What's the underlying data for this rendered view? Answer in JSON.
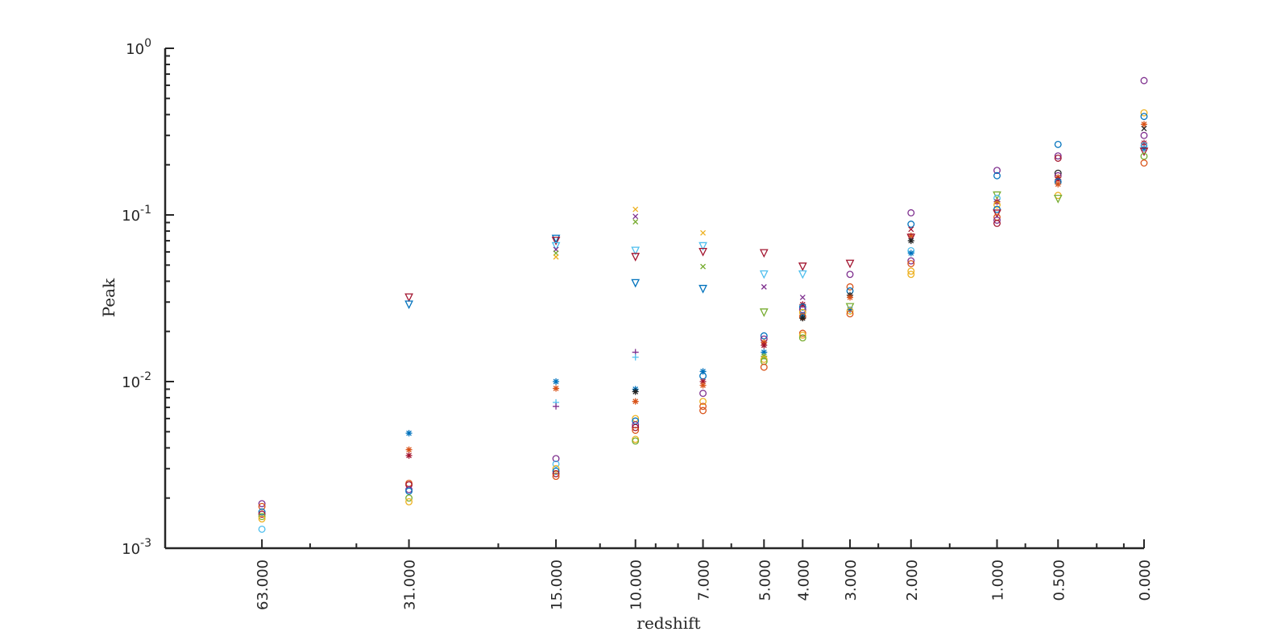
{
  "chart_data": {
    "type": "scatter",
    "title": "",
    "xlabel": "redshift",
    "ylabel": "Peak",
    "y_scale": "log",
    "ylim": [
      0.001,
      1
    ],
    "y_ticks": [
      {
        "value": 0.001,
        "base": "10",
        "exp": "-3"
      },
      {
        "value": 0.01,
        "base": "10",
        "exp": "-2"
      },
      {
        "value": 0.1,
        "base": "10",
        "exp": "-1"
      },
      {
        "value": 1,
        "base": "10",
        "exp": "0"
      }
    ],
    "x_scale": "log(1+z), reversed",
    "xlim": [
      100,
      0
    ],
    "x_tick_labels": [
      "63.000",
      "31.000",
      "15.000",
      "10.000",
      "7.000",
      "5.000",
      "4.000",
      "3.000",
      "2.000",
      "1.000",
      "0.500",
      "0.000"
    ],
    "x_minor_ticks": [
      50,
      40,
      20,
      12,
      9,
      8,
      6,
      2.5,
      1.5,
      0.75,
      0.25,
      0.1
    ],
    "grid": false,
    "legend": "none",
    "colors": {
      "blue": "#0072BD",
      "orange": "#D95319",
      "yellow": "#EDB120",
      "purple": "#7E2F8E",
      "green": "#77AC30",
      "cyan": "#4DBEEE",
      "darkred": "#A2142F",
      "dark": "#222222"
    },
    "points": [
      {
        "z": 63,
        "y": 0.00185,
        "m": "o",
        "c": "purple"
      },
      {
        "z": 63,
        "y": 0.00178,
        "m": "o",
        "c": "orange"
      },
      {
        "z": 63,
        "y": 0.00165,
        "m": "o",
        "c": "blue"
      },
      {
        "z": 63,
        "y": 0.0016,
        "m": "o",
        "c": "darkred"
      },
      {
        "z": 63,
        "y": 0.00155,
        "m": "o",
        "c": "green"
      },
      {
        "z": 63,
        "y": 0.0015,
        "m": "o",
        "c": "yellow"
      },
      {
        "z": 63,
        "y": 0.0013,
        "m": "o",
        "c": "cyan"
      },
      {
        "z": 31,
        "y": 0.032,
        "m": "v",
        "c": "darkred"
      },
      {
        "z": 31,
        "y": 0.029,
        "m": "v",
        "c": "blue"
      },
      {
        "z": 31,
        "y": 0.0049,
        "m": "*",
        "c": "blue"
      },
      {
        "z": 31,
        "y": 0.0039,
        "m": "*",
        "c": "orange"
      },
      {
        "z": 31,
        "y": 0.0036,
        "m": "*",
        "c": "darkred"
      },
      {
        "z": 31,
        "y": 0.00245,
        "m": "o",
        "c": "orange"
      },
      {
        "z": 31,
        "y": 0.0024,
        "m": "o",
        "c": "darkred"
      },
      {
        "z": 31,
        "y": 0.00225,
        "m": "o",
        "c": "purple"
      },
      {
        "z": 31,
        "y": 0.0022,
        "m": "o",
        "c": "blue"
      },
      {
        "z": 31,
        "y": 0.002,
        "m": "o",
        "c": "green"
      },
      {
        "z": 31,
        "y": 0.0019,
        "m": "o",
        "c": "yellow"
      },
      {
        "z": 15,
        "y": 0.072,
        "m": "v",
        "c": "blue"
      },
      {
        "z": 15,
        "y": 0.07,
        "m": "v",
        "c": "darkred"
      },
      {
        "z": 15,
        "y": 0.065,
        "m": "v",
        "c": "cyan"
      },
      {
        "z": 15,
        "y": 0.062,
        "m": "x",
        "c": "purple"
      },
      {
        "z": 15,
        "y": 0.059,
        "m": "x",
        "c": "green"
      },
      {
        "z": 15,
        "y": 0.056,
        "m": "x",
        "c": "yellow"
      },
      {
        "z": 15,
        "y": 0.01,
        "m": "*",
        "c": "blue"
      },
      {
        "z": 15,
        "y": 0.0091,
        "m": "*",
        "c": "orange"
      },
      {
        "z": 15,
        "y": 0.0075,
        "m": "+",
        "c": "cyan"
      },
      {
        "z": 15,
        "y": 0.0071,
        "m": "+",
        "c": "purple"
      },
      {
        "z": 15,
        "y": 0.00345,
        "m": "o",
        "c": "purple"
      },
      {
        "z": 15,
        "y": 0.0032,
        "m": "o",
        "c": "cyan"
      },
      {
        "z": 15,
        "y": 0.003,
        "m": "o",
        "c": "yellow"
      },
      {
        "z": 15,
        "y": 0.0029,
        "m": "o",
        "c": "blue"
      },
      {
        "z": 15,
        "y": 0.0028,
        "m": "o",
        "c": "darkred"
      },
      {
        "z": 15,
        "y": 0.0027,
        "m": "o",
        "c": "orange"
      },
      {
        "z": 10,
        "y": 0.108,
        "m": "x",
        "c": "yellow"
      },
      {
        "z": 10,
        "y": 0.098,
        "m": "x",
        "c": "purple"
      },
      {
        "z": 10,
        "y": 0.091,
        "m": "x",
        "c": "green"
      },
      {
        "z": 10,
        "y": 0.061,
        "m": "v",
        "c": "cyan"
      },
      {
        "z": 10,
        "y": 0.056,
        "m": "v",
        "c": "darkred"
      },
      {
        "z": 10,
        "y": 0.039,
        "m": "v",
        "c": "blue"
      },
      {
        "z": 10,
        "y": 0.015,
        "m": "+",
        "c": "purple"
      },
      {
        "z": 10,
        "y": 0.014,
        "m": "+",
        "c": "cyan"
      },
      {
        "z": 10,
        "y": 0.009,
        "m": "*",
        "c": "blue"
      },
      {
        "z": 10,
        "y": 0.0087,
        "m": "*",
        "c": "dark"
      },
      {
        "z": 10,
        "y": 0.0076,
        "m": "*",
        "c": "orange"
      },
      {
        "z": 10,
        "y": 0.006,
        "m": "o",
        "c": "yellow"
      },
      {
        "z": 10,
        "y": 0.0058,
        "m": "o",
        "c": "blue"
      },
      {
        "z": 10,
        "y": 0.0055,
        "m": "o",
        "c": "purple"
      },
      {
        "z": 10,
        "y": 0.0053,
        "m": "o",
        "c": "darkred"
      },
      {
        "z": 10,
        "y": 0.0051,
        "m": "o",
        "c": "orange"
      },
      {
        "z": 10,
        "y": 0.0045,
        "m": "o",
        "c": "yellow"
      },
      {
        "z": 10,
        "y": 0.0044,
        "m": "o",
        "c": "green"
      },
      {
        "z": 7,
        "y": 0.078,
        "m": "x",
        "c": "yellow"
      },
      {
        "z": 7,
        "y": 0.065,
        "m": "v",
        "c": "cyan"
      },
      {
        "z": 7,
        "y": 0.06,
        "m": "v",
        "c": "darkred"
      },
      {
        "z": 7,
        "y": 0.049,
        "m": "x",
        "c": "green"
      },
      {
        "z": 7,
        "y": 0.036,
        "m": "v",
        "c": "blue"
      },
      {
        "z": 7,
        "y": 0.0115,
        "m": "*",
        "c": "blue"
      },
      {
        "z": 7,
        "y": 0.0108,
        "m": "o",
        "c": "blue"
      },
      {
        "z": 7,
        "y": 0.01,
        "m": "*",
        "c": "darkred"
      },
      {
        "z": 7,
        "y": 0.0095,
        "m": "*",
        "c": "orange"
      },
      {
        "z": 7,
        "y": 0.0085,
        "m": "o",
        "c": "purple"
      },
      {
        "z": 7,
        "y": 0.0076,
        "m": "o",
        "c": "yellow"
      },
      {
        "z": 7,
        "y": 0.0071,
        "m": "o",
        "c": "orange"
      },
      {
        "z": 7,
        "y": 0.0067,
        "m": "o",
        "c": "orange"
      },
      {
        "z": 5,
        "y": 0.059,
        "m": "v",
        "c": "darkred"
      },
      {
        "z": 5,
        "y": 0.044,
        "m": "v",
        "c": "cyan"
      },
      {
        "z": 5,
        "y": 0.037,
        "m": "x",
        "c": "purple"
      },
      {
        "z": 5,
        "y": 0.026,
        "m": "v",
        "c": "green"
      },
      {
        "z": 5,
        "y": 0.0188,
        "m": "o",
        "c": "blue"
      },
      {
        "z": 5,
        "y": 0.018,
        "m": "o",
        "c": "purple"
      },
      {
        "z": 5,
        "y": 0.0172,
        "m": "*",
        "c": "orange"
      },
      {
        "z": 5,
        "y": 0.0165,
        "m": "*",
        "c": "darkred"
      },
      {
        "z": 5,
        "y": 0.015,
        "m": "*",
        "c": "blue"
      },
      {
        "z": 5,
        "y": 0.0142,
        "m": "*",
        "c": "green"
      },
      {
        "z": 5,
        "y": 0.0136,
        "m": "o",
        "c": "yellow"
      },
      {
        "z": 5,
        "y": 0.0132,
        "m": "o",
        "c": "green"
      },
      {
        "z": 5,
        "y": 0.0122,
        "m": "o",
        "c": "orange"
      },
      {
        "z": 4,
        "y": 0.049,
        "m": "v",
        "c": "darkred"
      },
      {
        "z": 4,
        "y": 0.044,
        "m": "v",
        "c": "cyan"
      },
      {
        "z": 4,
        "y": 0.032,
        "m": "x",
        "c": "purple"
      },
      {
        "z": 4,
        "y": 0.029,
        "m": "*",
        "c": "darkred"
      },
      {
        "z": 4,
        "y": 0.028,
        "m": "o",
        "c": "blue"
      },
      {
        "z": 4,
        "y": 0.027,
        "m": "o",
        "c": "purple"
      },
      {
        "z": 4,
        "y": 0.026,
        "m": "o",
        "c": "yellow"
      },
      {
        "z": 4,
        "y": 0.025,
        "m": "*",
        "c": "blue"
      },
      {
        "z": 4,
        "y": 0.0245,
        "m": "o",
        "c": "orange"
      },
      {
        "z": 4,
        "y": 0.024,
        "m": "*",
        "c": "dark"
      },
      {
        "z": 4,
        "y": 0.0195,
        "m": "o",
        "c": "orange"
      },
      {
        "z": 4,
        "y": 0.019,
        "m": "o",
        "c": "yellow"
      },
      {
        "z": 4,
        "y": 0.0183,
        "m": "o",
        "c": "green"
      },
      {
        "z": 3,
        "y": 0.051,
        "m": "v",
        "c": "darkred"
      },
      {
        "z": 3,
        "y": 0.044,
        "m": "o",
        "c": "purple"
      },
      {
        "z": 3,
        "y": 0.037,
        "m": "o",
        "c": "orange"
      },
      {
        "z": 3,
        "y": 0.035,
        "m": "o",
        "c": "blue"
      },
      {
        "z": 3,
        "y": 0.033,
        "m": "*",
        "c": "dark"
      },
      {
        "z": 3,
        "y": 0.032,
        "m": "*",
        "c": "orange"
      },
      {
        "z": 3,
        "y": 0.028,
        "m": "v",
        "c": "green"
      },
      {
        "z": 3,
        "y": 0.027,
        "m": "*",
        "c": "blue"
      },
      {
        "z": 3,
        "y": 0.0265,
        "m": "o",
        "c": "yellow"
      },
      {
        "z": 3,
        "y": 0.0255,
        "m": "o",
        "c": "orange"
      },
      {
        "z": 2,
        "y": 0.103,
        "m": "o",
        "c": "purple"
      },
      {
        "z": 2,
        "y": 0.088,
        "m": "o",
        "c": "blue"
      },
      {
        "z": 2,
        "y": 0.082,
        "m": "x",
        "c": "darkred"
      },
      {
        "z": 2,
        "y": 0.075,
        "m": "*",
        "c": "orange"
      },
      {
        "z": 2,
        "y": 0.073,
        "m": "v",
        "c": "darkred"
      },
      {
        "z": 2,
        "y": 0.07,
        "m": "*",
        "c": "dark"
      },
      {
        "z": 2,
        "y": 0.061,
        "m": "o",
        "c": "cyan"
      },
      {
        "z": 2,
        "y": 0.059,
        "m": "*",
        "c": "blue"
      },
      {
        "z": 2,
        "y": 0.053,
        "m": "o",
        "c": "purple"
      },
      {
        "z": 2,
        "y": 0.051,
        "m": "o",
        "c": "orange"
      },
      {
        "z": 2,
        "y": 0.046,
        "m": "o",
        "c": "yellow"
      },
      {
        "z": 2,
        "y": 0.044,
        "m": "o",
        "c": "yellow"
      },
      {
        "z": 1,
        "y": 0.185,
        "m": "o",
        "c": "purple"
      },
      {
        "z": 1,
        "y": 0.172,
        "m": "o",
        "c": "blue"
      },
      {
        "z": 1,
        "y": 0.131,
        "m": "v",
        "c": "green"
      },
      {
        "z": 1,
        "y": 0.126,
        "m": "o",
        "c": "cyan"
      },
      {
        "z": 1,
        "y": 0.12,
        "m": "*",
        "c": "darkred"
      },
      {
        "z": 1,
        "y": 0.115,
        "m": "o",
        "c": "yellow"
      },
      {
        "z": 1,
        "y": 0.108,
        "m": "o",
        "c": "blue"
      },
      {
        "z": 1,
        "y": 0.102,
        "m": "v",
        "c": "darkred"
      },
      {
        "z": 1,
        "y": 0.097,
        "m": "o",
        "c": "orange"
      },
      {
        "z": 1,
        "y": 0.093,
        "m": "o",
        "c": "purple"
      },
      {
        "z": 1,
        "y": 0.089,
        "m": "o",
        "c": "darkred"
      },
      {
        "z": 0.5,
        "y": 0.265,
        "m": "o",
        "c": "blue"
      },
      {
        "z": 0.5,
        "y": 0.226,
        "m": "o",
        "c": "purple"
      },
      {
        "z": 0.5,
        "y": 0.219,
        "m": "o",
        "c": "darkred"
      },
      {
        "z": 0.5,
        "y": 0.178,
        "m": "o",
        "c": "dark"
      },
      {
        "z": 0.5,
        "y": 0.172,
        "m": "o",
        "c": "purple"
      },
      {
        "z": 0.5,
        "y": 0.168,
        "m": "*",
        "c": "orange"
      },
      {
        "z": 0.5,
        "y": 0.163,
        "m": "*",
        "c": "darkred"
      },
      {
        "z": 0.5,
        "y": 0.158,
        "m": "o",
        "c": "blue"
      },
      {
        "z": 0.5,
        "y": 0.153,
        "m": "*",
        "c": "orange"
      },
      {
        "z": 0.5,
        "y": 0.131,
        "m": "o",
        "c": "yellow"
      },
      {
        "z": 0.5,
        "y": 0.125,
        "m": "v",
        "c": "green"
      },
      {
        "z": 0,
        "y": 0.64,
        "m": "o",
        "c": "purple"
      },
      {
        "z": 0,
        "y": 0.41,
        "m": "o",
        "c": "yellow"
      },
      {
        "z": 0,
        "y": 0.39,
        "m": "o",
        "c": "blue"
      },
      {
        "z": 0,
        "y": 0.35,
        "m": "*",
        "c": "orange"
      },
      {
        "z": 0,
        "y": 0.33,
        "m": "x",
        "c": "dark"
      },
      {
        "z": 0,
        "y": 0.3,
        "m": "o",
        "c": "purple"
      },
      {
        "z": 0,
        "y": 0.27,
        "m": "*",
        "c": "darkred"
      },
      {
        "z": 0,
        "y": 0.26,
        "m": "o",
        "c": "cyan"
      },
      {
        "z": 0,
        "y": 0.25,
        "m": "*",
        "c": "blue"
      },
      {
        "z": 0,
        "y": 0.24,
        "m": "v",
        "c": "darkred"
      },
      {
        "z": 0,
        "y": 0.225,
        "m": "o",
        "c": "green"
      },
      {
        "z": 0,
        "y": 0.205,
        "m": "o",
        "c": "orange"
      }
    ]
  }
}
